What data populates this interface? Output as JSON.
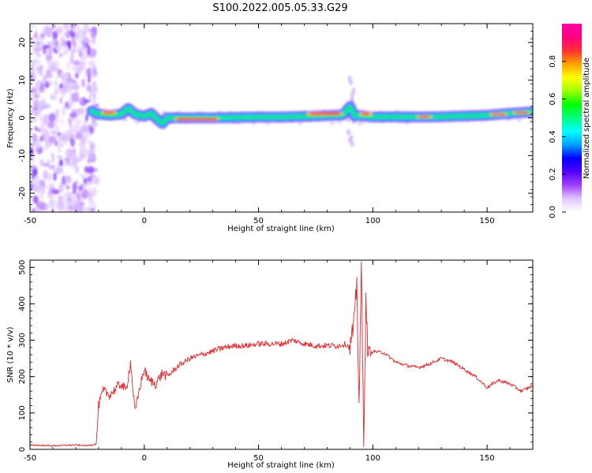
{
  "title": "S100.2022.005.05.33.G29",
  "chart_data": [
    {
      "type": "heatmap",
      "xlabel": "Height of straight line (km)",
      "ylabel": "Frequency (Hz)",
      "xlim": [
        -50,
        170
      ],
      "ylim": [
        -25,
        25
      ],
      "xticks": [
        -50,
        0,
        50,
        100,
        150
      ],
      "yticks": [
        -20,
        -10,
        0,
        10,
        20
      ],
      "colorbar": {
        "label": "Normalized spectral amplitude",
        "range": [
          0,
          1
        ],
        "ticks": [
          0.0,
          0.2,
          0.4,
          0.6,
          0.8
        ],
        "colors": [
          "#ffffff",
          "#e0c8ff",
          "#a040ff",
          "#5000ff",
          "#0000ff",
          "#00a0ff",
          "#00ffff",
          "#00ff80",
          "#00ff00",
          "#a0ff00",
          "#ffff00",
          "#ffa000",
          "#ff3030",
          "#ff0080",
          "#ff00a0"
        ]
      },
      "ridge": [
        {
          "x": -23,
          "f": 1.8
        },
        {
          "x": -20,
          "f": 1.0
        },
        {
          "x": -15,
          "f": 0.7
        },
        {
          "x": -10,
          "f": 1.0
        },
        {
          "x": -7,
          "f": 2.5
        },
        {
          "x": -4,
          "f": 1.0
        },
        {
          "x": 0,
          "f": 0.4
        },
        {
          "x": 3,
          "f": 1.2
        },
        {
          "x": 6,
          "f": -0.6
        },
        {
          "x": 8,
          "f": -1.5
        },
        {
          "x": 10,
          "f": 0.0
        },
        {
          "x": 15,
          "f": 0.0
        },
        {
          "x": 20,
          "f": 0.0
        },
        {
          "x": 30,
          "f": 0.0
        },
        {
          "x": 40,
          "f": 0.1
        },
        {
          "x": 50,
          "f": 0.2
        },
        {
          "x": 60,
          "f": 0.2
        },
        {
          "x": 70,
          "f": 0.4
        },
        {
          "x": 80,
          "f": 0.6
        },
        {
          "x": 87,
          "f": 0.8
        },
        {
          "x": 90,
          "f": 3.0
        },
        {
          "x": 92,
          "f": 0.5
        },
        {
          "x": 95,
          "f": 0.6
        },
        {
          "x": 100,
          "f": 0.2
        },
        {
          "x": 110,
          "f": 0.3
        },
        {
          "x": 120,
          "f": 0.2
        },
        {
          "x": 130,
          "f": 0.3
        },
        {
          "x": 140,
          "f": 0.5
        },
        {
          "x": 150,
          "f": 0.7
        },
        {
          "x": 160,
          "f": 1.2
        },
        {
          "x": 170,
          "f": 1.6
        }
      ],
      "noise_region_x": [
        -50,
        -23
      ]
    },
    {
      "type": "line",
      "xlabel": "Height of straight line (km)",
      "ylabel": "SNR (10 * v/v)",
      "xlim": [
        -50,
        170
      ],
      "ylim": [
        0,
        520
      ],
      "xticks": [
        -50,
        0,
        50,
        100,
        150
      ],
      "yticks": [
        0,
        100,
        200,
        300,
        400,
        500
      ],
      "series": [
        {
          "color": "#e8262c",
          "x": [
            -50,
            -40,
            -30,
            -25,
            -21,
            -20,
            -18,
            -15,
            -12,
            -10,
            -8,
            -6,
            -5,
            -4,
            -2,
            0,
            2,
            5,
            8,
            10,
            15,
            20,
            25,
            30,
            35,
            40,
            45,
            50,
            55,
            60,
            65,
            70,
            75,
            80,
            85,
            88,
            90,
            92,
            93,
            94,
            95,
            96,
            97,
            98,
            100,
            105,
            110,
            115,
            120,
            125,
            130,
            135,
            140,
            145,
            150,
            155,
            160,
            165,
            170
          ],
          "y": [
            12,
            10,
            12,
            10,
            15,
            120,
            160,
            150,
            170,
            180,
            160,
            240,
            170,
            100,
            170,
            220,
            190,
            180,
            210,
            200,
            230,
            250,
            260,
            270,
            280,
            285,
            285,
            290,
            290,
            290,
            300,
            290,
            285,
            285,
            285,
            290,
            280,
            350,
            460,
            120,
            500,
            40,
            400,
            250,
            270,
            265,
            240,
            230,
            225,
            235,
            250,
            240,
            220,
            200,
            170,
            190,
            180,
            160,
            175
          ]
        }
      ]
    }
  ]
}
